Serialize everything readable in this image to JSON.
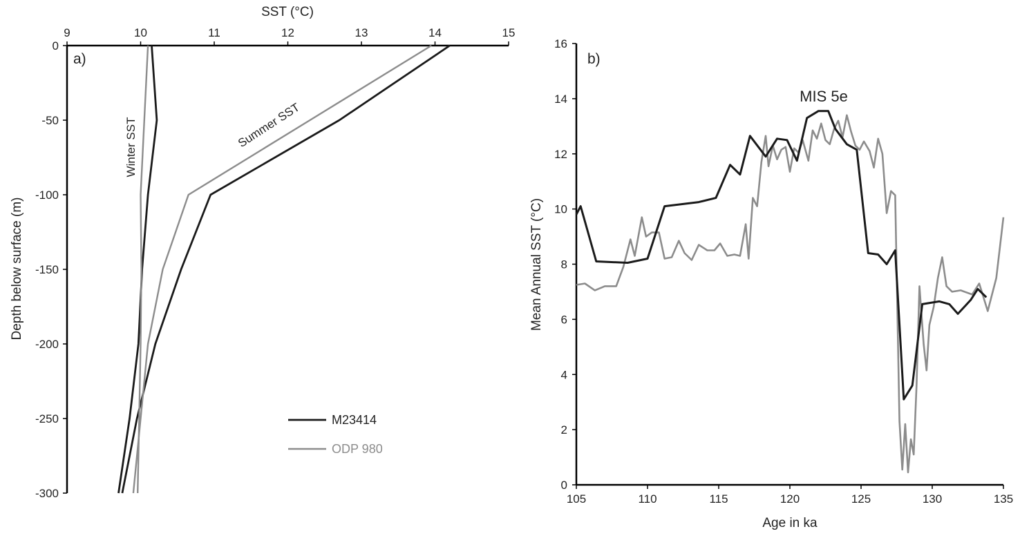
{
  "colors": {
    "m23414": "#1a1a1a",
    "odp980": "#8c8c8c",
    "axis": "#000000"
  },
  "chart_data": [
    {
      "type": "line",
      "panel_label": "a)",
      "xlabel": "SST (°C)",
      "ylabel": "Depth below surface (m)",
      "xlim": [
        9,
        15
      ],
      "ylim": [
        -300,
        0
      ],
      "x_axis_position": "top",
      "x_ticks": [
        "9",
        "10",
        "11",
        "12",
        "13",
        "14",
        "15"
      ],
      "y_ticks": [
        "0",
        "-50",
        "-100",
        "-150",
        "-200",
        "-250",
        "-300"
      ],
      "grid": false,
      "annotations": [
        "Winter SST",
        "Summer SST"
      ],
      "legend": {
        "placement": "bottom-right",
        "entries": [
          "M23414",
          "ODP 980"
        ]
      },
      "series": [
        {
          "name": "M23414",
          "profile": "Winter SST",
          "color": "#1a1a1a",
          "points": [
            [
              10.15,
              0
            ],
            [
              10.22,
              -50
            ],
            [
              10.1,
              -100
            ],
            [
              10.02,
              -150
            ],
            [
              9.97,
              -200
            ],
            [
              9.85,
              -250
            ],
            [
              9.7,
              -300
            ]
          ]
        },
        {
          "name": "M23414",
          "profile": "Summer SST",
          "color": "#1a1a1a",
          "points": [
            [
              14.2,
              0
            ],
            [
              12.7,
              -50
            ],
            [
              10.95,
              -100
            ],
            [
              10.55,
              -150
            ],
            [
              10.2,
              -200
            ],
            [
              9.95,
              -250
            ],
            [
              9.75,
              -300
            ]
          ]
        },
        {
          "name": "ODP 980",
          "profile": "Winter SST",
          "color": "#8c8c8c",
          "points": [
            [
              10.1,
              0
            ],
            [
              10.05,
              -50
            ],
            [
              10.0,
              -100
            ],
            [
              10.01,
              -150
            ],
            [
              10.0,
              -200
            ],
            [
              9.98,
              -250
            ],
            [
              9.96,
              -300
            ]
          ]
        },
        {
          "name": "ODP 980",
          "profile": "Summer SST",
          "color": "#8c8c8c",
          "points": [
            [
              13.95,
              0
            ],
            [
              12.3,
              -50
            ],
            [
              10.65,
              -100
            ],
            [
              10.3,
              -150
            ],
            [
              10.1,
              -200
            ],
            [
              10.0,
              -250
            ],
            [
              9.9,
              -300
            ]
          ]
        }
      ]
    },
    {
      "type": "line",
      "panel_label": "b)",
      "xlabel": "Age in ka",
      "ylabel": "Mean Annual SST (°C)",
      "xlim": [
        105,
        135
      ],
      "ylim": [
        0,
        16
      ],
      "x_ticks": [
        "105",
        "110",
        "115",
        "120",
        "125",
        "130",
        "135"
      ],
      "y_ticks": [
        "0",
        "2",
        "4",
        "6",
        "8",
        "10",
        "12",
        "14",
        "16"
      ],
      "grid": false,
      "annotations": [
        "MIS 5e"
      ],
      "series": [
        {
          "name": "M23414",
          "color": "#1a1a1a",
          "x": [
            105,
            105.3,
            106.4,
            108.6,
            110,
            111.2,
            113.6,
            114.8,
            115.8,
            116.5,
            117.2,
            118.3,
            119.1,
            119.8,
            120.5,
            121.2,
            122,
            122.7,
            123.2,
            124,
            124.7,
            125.5,
            126.2,
            126.8,
            127.4,
            128,
            128.6,
            129.3,
            130.5,
            131.2,
            131.8,
            132.7,
            133.2,
            133.8
          ],
          "values": [
            9.8,
            10.1,
            8.1,
            8.05,
            8.2,
            10.1,
            10.25,
            10.4,
            11.6,
            11.25,
            12.65,
            11.9,
            12.55,
            12.5,
            11.75,
            13.3,
            13.55,
            13.55,
            12.9,
            12.35,
            12.15,
            8.4,
            8.35,
            8.0,
            8.5,
            3.1,
            3.6,
            6.55,
            6.65,
            6.55,
            6.2,
            6.7,
            7.1,
            6.8
          ]
        },
        {
          "name": "ODP 980",
          "color": "#8c8c8c",
          "x": [
            105,
            105.6,
            106.3,
            107,
            107.8,
            108.3,
            108.8,
            109.1,
            109.6,
            109.9,
            110.3,
            110.8,
            111.2,
            111.7,
            112.2,
            112.6,
            113.1,
            113.6,
            114.2,
            114.7,
            115.1,
            115.6,
            116.1,
            116.5,
            116.9,
            117.1,
            117.4,
            117.7,
            118,
            118.3,
            118.5,
            118.8,
            119.1,
            119.4,
            119.7,
            120,
            120.3,
            120.6,
            120.9,
            121.3,
            121.6,
            121.9,
            122.2,
            122.5,
            122.8,
            123.1,
            123.4,
            123.7,
            124,
            124.3,
            124.6,
            124.9,
            125.2,
            125.6,
            125.9,
            126.2,
            126.5,
            126.8,
            127.1,
            127.4,
            127.7,
            127.9,
            128.1,
            128.3,
            128.5,
            128.7,
            128.9,
            129.1,
            129.4,
            129.6,
            129.8,
            130.1,
            130.4,
            130.7,
            131,
            131.4,
            132,
            132.8,
            133.3,
            133.9,
            134.5,
            135
          ],
          "values": [
            7.25,
            7.3,
            7.05,
            7.2,
            7.2,
            7.9,
            8.9,
            8.3,
            9.7,
            9.0,
            9.15,
            9.15,
            8.2,
            8.25,
            8.85,
            8.4,
            8.15,
            8.7,
            8.5,
            8.5,
            8.75,
            8.3,
            8.35,
            8.3,
            9.45,
            8.2,
            10.4,
            10.1,
            11.7,
            12.65,
            11.55,
            12.3,
            11.8,
            12.15,
            12.25,
            11.35,
            12.2,
            12.05,
            12.5,
            11.75,
            12.85,
            12.55,
            13.1,
            12.5,
            12.35,
            12.9,
            13.2,
            12.6,
            13.4,
            12.8,
            12.3,
            12.15,
            12.45,
            12.1,
            11.5,
            12.55,
            12.0,
            9.85,
            10.65,
            10.5,
            2.3,
            0.55,
            2.2,
            0.45,
            1.65,
            1.1,
            3.6,
            7.2,
            5.1,
            4.15,
            5.8,
            6.45,
            7.5,
            8.25,
            7.2,
            7.0,
            7.05,
            6.9,
            7.3,
            6.3,
            7.5,
            9.7
          ]
        }
      ]
    }
  ]
}
